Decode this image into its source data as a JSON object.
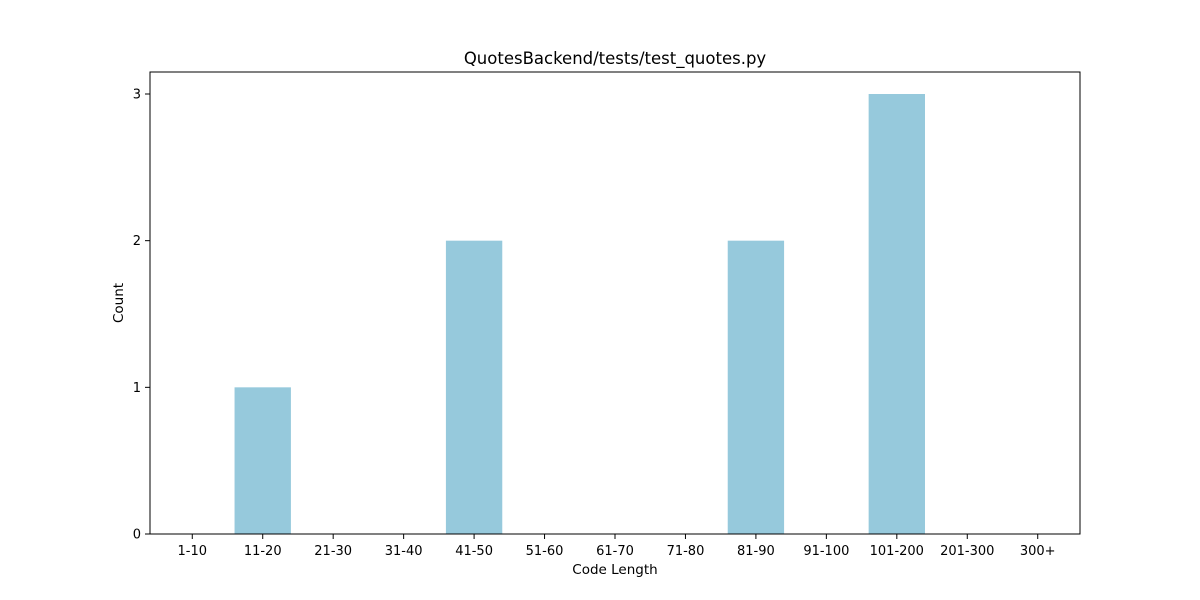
{
  "chart_data": {
    "type": "bar",
    "title": "QuotesBackend/tests/test_quotes.py",
    "xlabel": "Code Length",
    "ylabel": "Count",
    "categories": [
      "1-10",
      "11-20",
      "21-30",
      "31-40",
      "41-50",
      "51-60",
      "61-70",
      "71-80",
      "81-90",
      "91-100",
      "101-200",
      "201-300",
      "300+"
    ],
    "values": [
      0,
      1,
      0,
      0,
      2,
      0,
      0,
      0,
      2,
      0,
      3,
      0,
      0
    ],
    "ylim": [
      0,
      3.15
    ],
    "yticks": [
      0,
      1,
      2,
      3
    ],
    "grid": false,
    "bar_color": "#96c9dc"
  }
}
